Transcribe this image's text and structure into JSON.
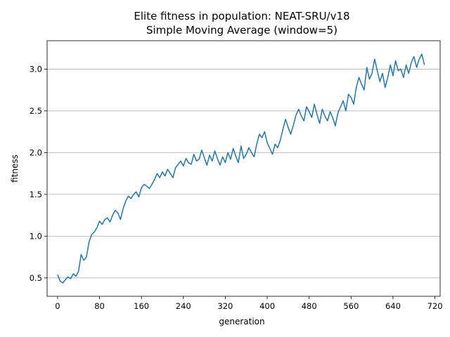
{
  "chart_data": {
    "type": "line",
    "title": "Elite fitness in population: NEAT-SRU/v18",
    "subtitle": "Simple Moving Average (window=5)",
    "xlabel": "generation",
    "ylabel": "fitness",
    "xlim": [
      -20,
      730
    ],
    "ylim": [
      0.28,
      3.34
    ],
    "xticks": [
      0,
      80,
      160,
      240,
      320,
      400,
      480,
      560,
      640,
      720
    ],
    "yticks": [
      0.5,
      1.0,
      1.5,
      2.0,
      2.5,
      3.0
    ],
    "xtick_labels": [
      "0",
      "80",
      "160",
      "240",
      "320",
      "400",
      "480",
      "560",
      "640",
      "720"
    ],
    "ytick_labels": [
      "0.5",
      "1.0",
      "1.5",
      "2.0",
      "2.5",
      "3.0"
    ],
    "grid": "horizontal",
    "legend": "none",
    "line_color": "#1f77b4",
    "series": [
      {
        "x": [
          0,
          5,
          10,
          15,
          20,
          25,
          30,
          35,
          40,
          45,
          50,
          55,
          60,
          65,
          70,
          75,
          80,
          85,
          90,
          95,
          100,
          105,
          110,
          115,
          120,
          125,
          130,
          135,
          140,
          145,
          150,
          155,
          160,
          165,
          170,
          175,
          180,
          185,
          190,
          195,
          200,
          205,
          210,
          215,
          220,
          225,
          230,
          235,
          240,
          245,
          250,
          255,
          260,
          265,
          270,
          275,
          280,
          285,
          290,
          295,
          300,
          305,
          310,
          315,
          320,
          325,
          330,
          335,
          340,
          345,
          350,
          355,
          360,
          365,
          370,
          375,
          380,
          385,
          390,
          395,
          400,
          405,
          410,
          415,
          420,
          425,
          430,
          435,
          440,
          445,
          450,
          455,
          460,
          465,
          470,
          475,
          480,
          485,
          490,
          495,
          500,
          505,
          510,
          515,
          520,
          525,
          530,
          535,
          540,
          545,
          550,
          555,
          560,
          565,
          570,
          575,
          580,
          585,
          590,
          595,
          600,
          605,
          610,
          615,
          620,
          625,
          630,
          635,
          640,
          645,
          650,
          655,
          660,
          665,
          670,
          675,
          680,
          685,
          690,
          695,
          700
        ],
        "y": [
          0.54,
          0.46,
          0.44,
          0.48,
          0.51,
          0.49,
          0.55,
          0.52,
          0.58,
          0.78,
          0.71,
          0.75,
          0.93,
          1.02,
          1.05,
          1.1,
          1.18,
          1.14,
          1.2,
          1.22,
          1.17,
          1.25,
          1.31,
          1.28,
          1.2,
          1.33,
          1.42,
          1.48,
          1.45,
          1.5,
          1.53,
          1.47,
          1.58,
          1.62,
          1.6,
          1.57,
          1.62,
          1.68,
          1.75,
          1.7,
          1.77,
          1.72,
          1.8,
          1.75,
          1.7,
          1.82,
          1.86,
          1.9,
          1.84,
          1.93,
          1.88,
          1.86,
          1.98,
          1.9,
          1.92,
          2.03,
          1.94,
          1.85,
          1.97,
          1.9,
          2.02,
          1.93,
          1.85,
          1.95,
          1.88,
          2.0,
          1.92,
          2.05,
          1.96,
          1.88,
          2.08,
          1.93,
          1.98,
          2.06,
          2.0,
          1.95,
          2.1,
          2.22,
          2.18,
          2.25,
          2.12,
          2.05,
          1.98,
          2.1,
          2.06,
          2.15,
          2.28,
          2.4,
          2.3,
          2.22,
          2.33,
          2.45,
          2.52,
          2.44,
          2.38,
          2.55,
          2.49,
          2.42,
          2.58,
          2.46,
          2.35,
          2.52,
          2.44,
          2.38,
          2.49,
          2.42,
          2.32,
          2.48,
          2.55,
          2.62,
          2.5,
          2.7,
          2.66,
          2.58,
          2.78,
          2.9,
          2.82,
          2.75,
          3.02,
          2.88,
          2.95,
          3.12,
          2.98,
          2.85,
          2.95,
          2.78,
          2.9,
          3.05,
          2.92,
          3.1,
          2.98,
          3.0,
          2.9,
          3.05,
          2.95,
          3.08,
          3.15,
          3.02,
          3.12,
          3.18,
          3.05
        ]
      }
    ]
  }
}
